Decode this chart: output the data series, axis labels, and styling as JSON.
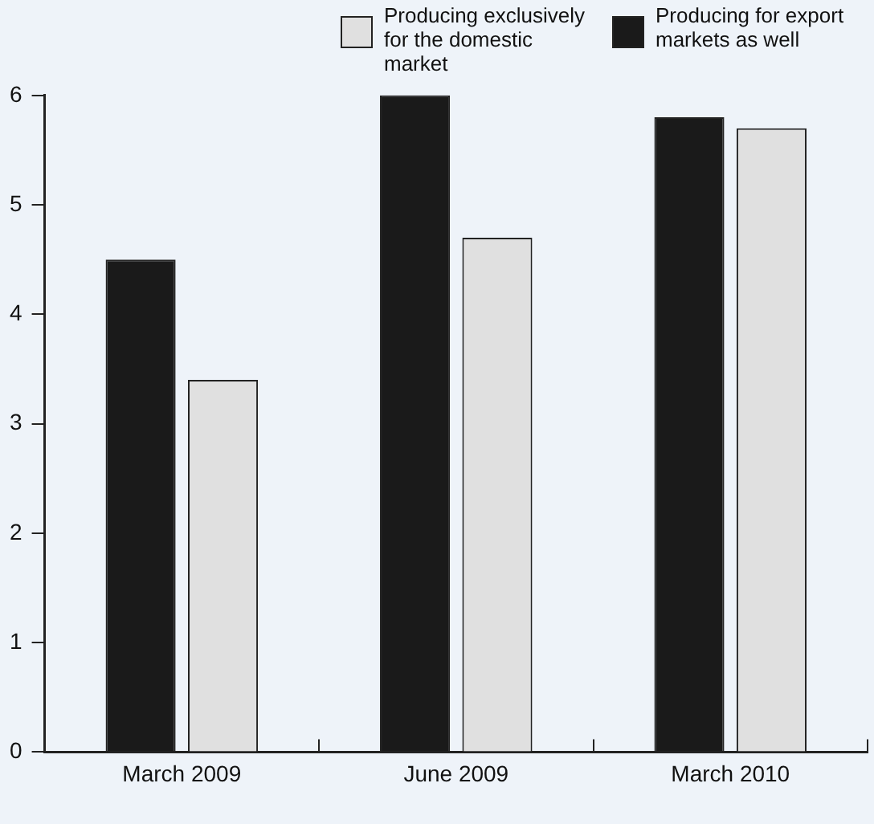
{
  "chart_data": {
    "type": "bar",
    "categories": [
      "March 2009",
      "June 2009",
      "March 2010"
    ],
    "series": [
      {
        "name": "Producing for export markets as well",
        "color": "#1a1a1a",
        "values": [
          4.5,
          6.0,
          5.8
        ]
      },
      {
        "name": "Producing exclusively for the domestic market",
        "color": "#e0e0e0",
        "values": [
          3.4,
          4.7,
          5.7
        ]
      }
    ],
    "ylim": [
      0,
      6
    ],
    "yticks": [
      0,
      1,
      2,
      3,
      4,
      5,
      6
    ],
    "grid": false,
    "legend": "top"
  }
}
